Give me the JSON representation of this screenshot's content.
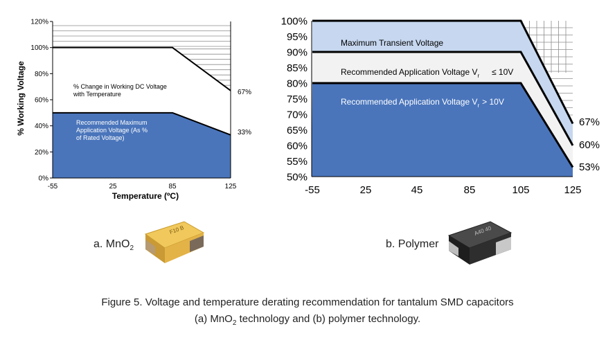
{
  "chart_data": [
    {
      "type": "area",
      "panel_label": "a. MnO",
      "panel_label_sub": "2",
      "xlabel": "Temperature (ºC)",
      "ylabel": "% Working Voltage",
      "x_ticks": [
        "-55",
        "25",
        "85",
        "125"
      ],
      "x_values": [
        -55,
        25,
        85,
        125
      ],
      "y_ticks": [
        "0%",
        "20%",
        "40%",
        "60%",
        "80%",
        "100%",
        "120%"
      ],
      "ylim": [
        0,
        120
      ],
      "grid": "hatched above working voltage",
      "series": [
        {
          "key": "working",
          "text": "% Change in Working DC Voltage with Temperature",
          "text_lines": [
            "% Change in Working DC Voltage",
            "with Temperature"
          ],
          "color": "#ffffff",
          "x": [
            -55,
            85,
            125
          ],
          "y": [
            100,
            100,
            67
          ]
        },
        {
          "key": "recommended",
          "text": "Recommended Maximum Application Voltage (As % of Rated Voltage)",
          "text_lines": [
            "Recommended Maximum",
            "Application Voltage (As %",
            "of Rated Voltage)"
          ],
          "color": "#4a75bb",
          "x": [
            -55,
            85,
            125
          ],
          "y": [
            50,
            50,
            33
          ]
        }
      ],
      "end_labels": [
        "67%",
        "33%"
      ]
    },
    {
      "type": "area",
      "panel_label": "b. Polymer",
      "x_ticks": [
        "-55",
        "25",
        "45",
        "85",
        "105",
        "125"
      ],
      "y_ticks": [
        "50%",
        "55%",
        "60%",
        "65%",
        "70%",
        "75%",
        "80%",
        "85%",
        "90%",
        "95%",
        "100%"
      ],
      "ylim": [
        50,
        100
      ],
      "grid": "hatched above transient voltage",
      "series": [
        {
          "key": "transient",
          "text": "Maximum Transient Voltage",
          "color": "#c6d7ef",
          "x": [
            -55,
            105,
            125
          ],
          "y": [
            100,
            100,
            67
          ]
        },
        {
          "key": "rec_low",
          "text": "Recommended Application Voltage V",
          "text_sub": "r",
          "text_tail": "≤ 10V",
          "color": "#f2f2f2",
          "x": [
            -55,
            105,
            125
          ],
          "y": [
            90,
            90,
            60
          ]
        },
        {
          "key": "rec_high",
          "text": "Recommended Application Voltage V",
          "text_sub": "r",
          "text_tail": "> 10V",
          "color": "#4a75bb",
          "x": [
            -55,
            105,
            125
          ],
          "y": [
            80,
            80,
            53
          ]
        }
      ],
      "end_labels": [
        "67%",
        "60%",
        "53%"
      ]
    }
  ],
  "caption": {
    "line1": "Figure 5. Voltage and temperature derating recommendation for tantalum SMD capacitors",
    "line2_pre": "(a) MnO",
    "line2_sub": "2",
    "line2_post": " technology and (b) polymer technology."
  },
  "colors": {
    "blue": "#4a75bb",
    "light_blue": "#c6d7ef",
    "grey_band": "#f2f2f2",
    "hatch": "#8c8c8c"
  },
  "icons": {
    "a": "mno2-tantalum-capacitor-icon",
    "b": "polymer-tantalum-capacitor-icon"
  }
}
